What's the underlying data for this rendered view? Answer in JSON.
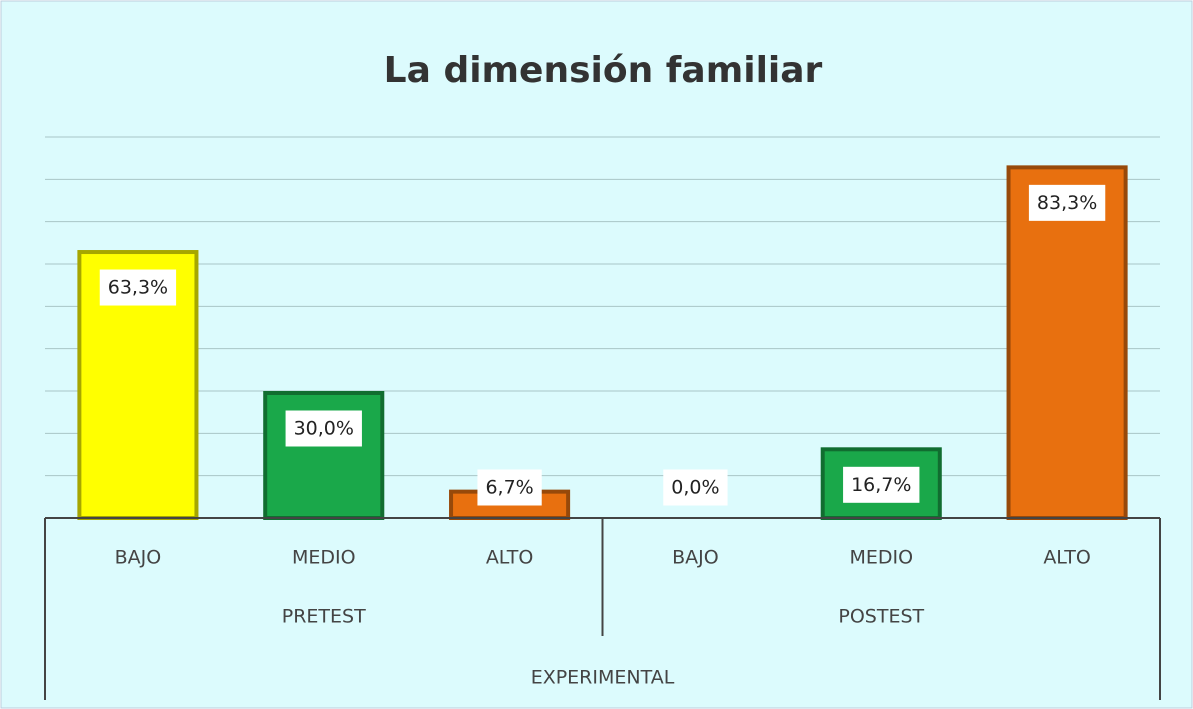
{
  "chart_data": {
    "type": "bar",
    "title": "La dimensión familiar",
    "categories": [
      "BAJO",
      "MEDIO",
      "ALTO",
      "BAJO",
      "MEDIO",
      "ALTO"
    ],
    "groups": [
      "PRETEST",
      "POSTEST"
    ],
    "supergroup": "EXPERIMENTAL",
    "values": [
      63.3,
      30.0,
      6.7,
      0.0,
      16.7,
      83.3
    ],
    "value_labels": [
      "63,3%",
      "30,0%",
      "6,7%",
      "0,0%",
      "16,7%",
      "83,3%"
    ],
    "colors": [
      "#ffff00",
      "#1aa84a",
      "#e8700f",
      "#ffff00",
      "#1aa84a",
      "#e8700f"
    ],
    "ylim": [
      0,
      90
    ],
    "yticks": [
      0,
      10,
      20,
      30,
      40,
      50,
      60,
      70,
      80,
      90
    ],
    "grid": true
  }
}
